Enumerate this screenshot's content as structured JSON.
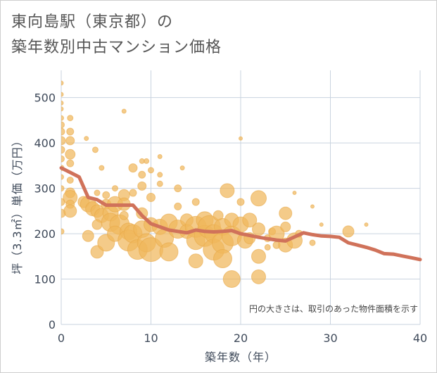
{
  "title": {
    "line1": "東向島駅（東京都）の",
    "line2": "築年数別中古マンション価格"
  },
  "colors": {
    "bubble_fill": "#f0b75c",
    "bubble_stroke": "#e8a848",
    "line": "#d0725a",
    "grid": "#c9d3df",
    "plot_bg": "#ffffff"
  },
  "chart_data": {
    "type": "scatter",
    "title": "東向島駅（東京都）の 築年数別中古マンション価格",
    "xlabel": "築年数（年）",
    "ylabel": "坪（3.3㎡）単価（万円）",
    "xlim": [
      0,
      40
    ],
    "ylim": [
      0,
      560
    ],
    "x_ticks": [
      0,
      10,
      20,
      30,
      40
    ],
    "y_ticks": [
      0,
      100,
      200,
      300,
      400,
      500
    ],
    "grid": true,
    "note": "円の大きさは、取引のあった物件面積を示す",
    "series": [
      {
        "type": "line",
        "x": [
          0,
          1,
          2,
          3,
          4,
          5,
          6,
          7,
          8,
          9,
          10,
          11,
          12,
          13,
          14,
          15,
          16,
          17,
          18,
          19,
          20,
          21,
          22,
          23,
          24,
          25,
          26,
          27,
          28,
          29,
          30,
          31,
          32,
          33,
          34,
          35,
          36,
          37,
          38,
          39,
          40
        ],
        "y": [
          345,
          335,
          325,
          280,
          275,
          263,
          263,
          263,
          263,
          240,
          222,
          215,
          208,
          205,
          202,
          208,
          205,
          204,
          205,
          207,
          200,
          196,
          192,
          189,
          186,
          184,
          193,
          202,
          198,
          195,
          194,
          192,
          180,
          175,
          170,
          164,
          156,
          155,
          151,
          147,
          143
        ]
      },
      {
        "type": "bubble",
        "points": [
          {
            "x": 0,
            "y": 532,
            "size": 6
          },
          {
            "x": 0,
            "y": 507,
            "size": 6
          },
          {
            "x": 0,
            "y": 488,
            "size": 6
          },
          {
            "x": 0,
            "y": 475,
            "size": 6
          },
          {
            "x": 0,
            "y": 455,
            "size": 7
          },
          {
            "x": 0,
            "y": 440,
            "size": 9
          },
          {
            "x": 0,
            "y": 425,
            "size": 10
          },
          {
            "x": 0,
            "y": 405,
            "size": 12
          },
          {
            "x": 0,
            "y": 385,
            "size": 10
          },
          {
            "x": 0,
            "y": 365,
            "size": 9
          },
          {
            "x": 0,
            "y": 345,
            "size": 8
          },
          {
            "x": 0,
            "y": 325,
            "size": 7
          },
          {
            "x": 0,
            "y": 300,
            "size": 8
          },
          {
            "x": 0,
            "y": 270,
            "size": 10
          },
          {
            "x": 0,
            "y": 245,
            "size": 12
          },
          {
            "x": 0,
            "y": 205,
            "size": 8
          },
          {
            "x": 1,
            "y": 455,
            "size": 8
          },
          {
            "x": 1,
            "y": 425,
            "size": 10
          },
          {
            "x": 1,
            "y": 405,
            "size": 12
          },
          {
            "x": 1,
            "y": 375,
            "size": 14
          },
          {
            "x": 1,
            "y": 355,
            "size": 10
          },
          {
            "x": 1,
            "y": 318,
            "size": 9
          },
          {
            "x": 1,
            "y": 290,
            "size": 14
          },
          {
            "x": 1,
            "y": 280,
            "size": 20
          },
          {
            "x": 1,
            "y": 265,
            "size": 12
          },
          {
            "x": 1,
            "y": 250,
            "size": 18
          },
          {
            "x": 2.8,
            "y": 410,
            "size": 6
          },
          {
            "x": 2.5,
            "y": 270,
            "size": 16
          },
          {
            "x": 3,
            "y": 265,
            "size": 22
          },
          {
            "x": 3.5,
            "y": 255,
            "size": 20
          },
          {
            "x": 3,
            "y": 195,
            "size": 16
          },
          {
            "x": 4,
            "y": 290,
            "size": 8
          },
          {
            "x": 3.8,
            "y": 385,
            "size": 8
          },
          {
            "x": 4,
            "y": 250,
            "size": 18
          },
          {
            "x": 4.5,
            "y": 240,
            "size": 20
          },
          {
            "x": 4,
            "y": 220,
            "size": 14
          },
          {
            "x": 4,
            "y": 160,
            "size": 18
          },
          {
            "x": 4.5,
            "y": 345,
            "size": 7
          },
          {
            "x": 5,
            "y": 285,
            "size": 10
          },
          {
            "x": 5,
            "y": 265,
            "size": 14
          },
          {
            "x": 5.5,
            "y": 245,
            "size": 22
          },
          {
            "x": 5.5,
            "y": 225,
            "size": 26
          },
          {
            "x": 5,
            "y": 180,
            "size": 24
          },
          {
            "x": 6,
            "y": 300,
            "size": 8
          },
          {
            "x": 6,
            "y": 265,
            "size": 22
          },
          {
            "x": 6.5,
            "y": 220,
            "size": 28
          },
          {
            "x": 6,
            "y": 200,
            "size": 22
          },
          {
            "x": 7,
            "y": 470,
            "size": 6
          },
          {
            "x": 7,
            "y": 285,
            "size": 16
          },
          {
            "x": 7,
            "y": 265,
            "size": 18
          },
          {
            "x": 7,
            "y": 240,
            "size": 12
          },
          {
            "x": 7.5,
            "y": 205,
            "size": 24
          },
          {
            "x": 7.5,
            "y": 185,
            "size": 30
          },
          {
            "x": 8,
            "y": 345,
            "size": 12
          },
          {
            "x": 8,
            "y": 290,
            "size": 10
          },
          {
            "x": 8,
            "y": 200,
            "size": 26
          },
          {
            "x": 8.5,
            "y": 165,
            "size": 28
          },
          {
            "x": 9,
            "y": 360,
            "size": 7
          },
          {
            "x": 9,
            "y": 330,
            "size": 10
          },
          {
            "x": 9,
            "y": 305,
            "size": 12
          },
          {
            "x": 9.5,
            "y": 360,
            "size": 7
          },
          {
            "x": 9,
            "y": 245,
            "size": 16
          },
          {
            "x": 9,
            "y": 210,
            "size": 24
          },
          {
            "x": 9.5,
            "y": 180,
            "size": 26
          },
          {
            "x": 10,
            "y": 340,
            "size": 8
          },
          {
            "x": 10,
            "y": 280,
            "size": 12
          },
          {
            "x": 10,
            "y": 220,
            "size": 20
          },
          {
            "x": 10,
            "y": 165,
            "size": 34
          },
          {
            "x": 11,
            "y": 370,
            "size": 6
          },
          {
            "x": 11,
            "y": 330,
            "size": 7
          },
          {
            "x": 11,
            "y": 310,
            "size": 8
          },
          {
            "x": 11,
            "y": 215,
            "size": 22
          },
          {
            "x": 11.5,
            "y": 190,
            "size": 26
          },
          {
            "x": 12,
            "y": 225,
            "size": 24
          },
          {
            "x": 12,
            "y": 160,
            "size": 26
          },
          {
            "x": 13,
            "y": 300,
            "size": 10
          },
          {
            "x": 13,
            "y": 260,
            "size": 10
          },
          {
            "x": 13,
            "y": 210,
            "size": 26
          },
          {
            "x": 13.5,
            "y": 345,
            "size": 6
          },
          {
            "x": 14,
            "y": 230,
            "size": 18
          },
          {
            "x": 14,
            "y": 205,
            "size": 20
          },
          {
            "x": 15,
            "y": 270,
            "size": 10
          },
          {
            "x": 15,
            "y": 215,
            "size": 30
          },
          {
            "x": 15,
            "y": 185,
            "size": 26
          },
          {
            "x": 15,
            "y": 140,
            "size": 20
          },
          {
            "x": 16,
            "y": 230,
            "size": 24
          },
          {
            "x": 16,
            "y": 195,
            "size": 30
          },
          {
            "x": 16.5,
            "y": 215,
            "size": 32
          },
          {
            "x": 17,
            "y": 200,
            "size": 26
          },
          {
            "x": 17,
            "y": 165,
            "size": 30
          },
          {
            "x": 17.5,
            "y": 240,
            "size": 14
          },
          {
            "x": 18,
            "y": 215,
            "size": 24
          },
          {
            "x": 18,
            "y": 180,
            "size": 30
          },
          {
            "x": 18,
            "y": 145,
            "size": 26
          },
          {
            "x": 18.5,
            "y": 295,
            "size": 20
          },
          {
            "x": 19,
            "y": 230,
            "size": 20
          },
          {
            "x": 19,
            "y": 195,
            "size": 28
          },
          {
            "x": 19,
            "y": 100,
            "size": 24
          },
          {
            "x": 20,
            "y": 410,
            "size": 5
          },
          {
            "x": 20,
            "y": 270,
            "size": 10
          },
          {
            "x": 20,
            "y": 220,
            "size": 22
          },
          {
            "x": 20.5,
            "y": 185,
            "size": 22
          },
          {
            "x": 21,
            "y": 230,
            "size": 20
          },
          {
            "x": 21,
            "y": 190,
            "size": 16
          },
          {
            "x": 22,
            "y": 278,
            "size": 22
          },
          {
            "x": 22,
            "y": 210,
            "size": 18
          },
          {
            "x": 22,
            "y": 150,
            "size": 20
          },
          {
            "x": 22,
            "y": 105,
            "size": 20
          },
          {
            "x": 23,
            "y": 190,
            "size": 10
          },
          {
            "x": 23,
            "y": 170,
            "size": 8
          },
          {
            "x": 23.5,
            "y": 205,
            "size": 10
          },
          {
            "x": 24,
            "y": 200,
            "size": 22
          },
          {
            "x": 24,
            "y": 175,
            "size": 10
          },
          {
            "x": 25,
            "y": 245,
            "size": 18
          },
          {
            "x": 25,
            "y": 215,
            "size": 14
          },
          {
            "x": 25,
            "y": 175,
            "size": 20
          },
          {
            "x": 26,
            "y": 290,
            "size": 5
          },
          {
            "x": 26,
            "y": 185,
            "size": 22
          },
          {
            "x": 26.5,
            "y": 200,
            "size": 10
          },
          {
            "x": 28,
            "y": 260,
            "size": 5
          },
          {
            "x": 28,
            "y": 180,
            "size": 8
          },
          {
            "x": 29,
            "y": 220,
            "size": 5
          },
          {
            "x": 32,
            "y": 205,
            "size": 16
          },
          {
            "x": 34,
            "y": 220,
            "size": 5
          }
        ]
      }
    ]
  }
}
